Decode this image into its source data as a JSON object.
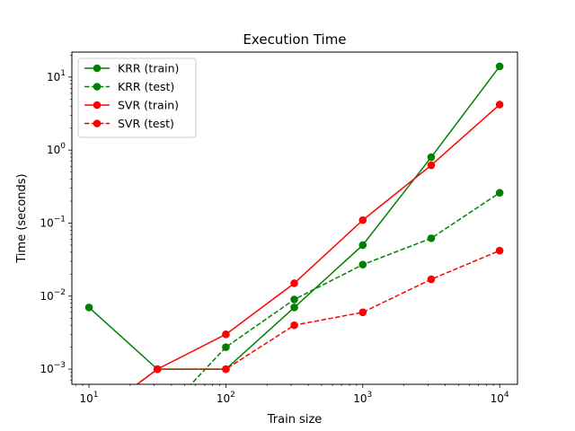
{
  "chart_data": {
    "type": "line",
    "title": "Execution Time",
    "xlabel": "Train size",
    "ylabel": "Time (seconds)",
    "xscale": "log",
    "yscale": "log",
    "xlim": [
      7.5,
      13500
    ],
    "ylim": [
      0.00062,
      22
    ],
    "grid": false,
    "legend_position": "top-left",
    "x_ticks": [
      {
        "value": 10,
        "base": "10",
        "exp": "1"
      },
      {
        "value": 100,
        "base": "10",
        "exp": "2"
      },
      {
        "value": 1000,
        "base": "10",
        "exp": "3"
      },
      {
        "value": 10000,
        "base": "10",
        "exp": "4"
      }
    ],
    "y_ticks": [
      {
        "value": 0.001,
        "base": "10",
        "exp": "−3"
      },
      {
        "value": 0.01,
        "base": "10",
        "exp": "−2"
      },
      {
        "value": 0.1,
        "base": "10",
        "exp": "−1"
      },
      {
        "value": 1,
        "base": "10",
        "exp": "0"
      },
      {
        "value": 10,
        "base": "10",
        "exp": "1"
      }
    ],
    "series": [
      {
        "name": "KRR (train)",
        "color": "#008000",
        "dash": "solid",
        "x": [
          10,
          31.6,
          100,
          316,
          1000,
          3162,
          10000
        ],
        "y": [
          0.007,
          0.001,
          0.001,
          0.007,
          0.05,
          0.8,
          14
        ]
      },
      {
        "name": "KRR (test)",
        "color": "#008000",
        "dash": "dashed",
        "x": [
          10,
          31.6,
          100,
          316,
          1000,
          3162,
          10000
        ],
        "y": [
          0,
          0,
          0.002,
          0.009,
          0.027,
          0.062,
          0.26
        ]
      },
      {
        "name": "SVR (train)",
        "color": "#ff0000",
        "dash": "solid",
        "x": [
          10,
          31.6,
          100,
          316,
          1000,
          3162,
          10000
        ],
        "y": [
          0,
          0.001,
          0.003,
          0.015,
          0.11,
          0.62,
          4.2
        ]
      },
      {
        "name": "SVR (test)",
        "color": "#ff0000",
        "dash": "dashed",
        "x": [
          10,
          31.6,
          100,
          316,
          1000,
          3162,
          10000
        ],
        "y": [
          0,
          0.001,
          0.001,
          0.004,
          0.006,
          0.017,
          0.042
        ]
      }
    ]
  }
}
